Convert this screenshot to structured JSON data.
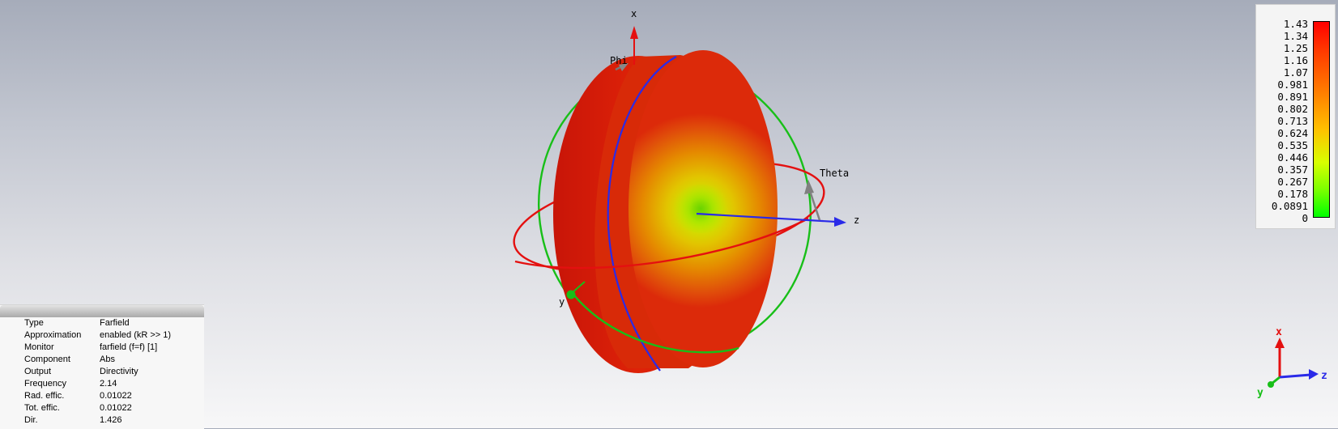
{
  "scene": {
    "axes": {
      "x_label": "x",
      "y_label": "y",
      "z_label": "z",
      "phi_label": "Phi",
      "theta_label": "Theta",
      "x_color": "#e41010",
      "y_color": "#12b012",
      "z_color": "#2323e6"
    },
    "pattern_colors": {
      "max": "#e01a0c",
      "mid": "#ff9a00",
      "low": "#c8ff00",
      "min": "#00ff00"
    }
  },
  "legend": {
    "ticks": [
      "1.43",
      "1.34",
      "1.25",
      "1.16",
      "1.07",
      "0.981",
      "0.891",
      "0.802",
      "0.713",
      "0.624",
      "0.535",
      "0.446",
      "0.357",
      "0.267",
      "0.178",
      "0.0891",
      "0"
    ]
  },
  "info": {
    "rows": [
      {
        "key": "Type",
        "value": "Farfield"
      },
      {
        "key": "Approximation",
        "value": "enabled (kR >> 1)"
      },
      {
        "key": "Monitor",
        "value": "farfield (f=f) [1]"
      },
      {
        "key": "Component",
        "value": "Abs"
      },
      {
        "key": "Output",
        "value": "Directivity"
      },
      {
        "key": "Frequency",
        "value": "2.14"
      },
      {
        "key": "Rad. effic.",
        "value": "0.01022"
      },
      {
        "key": "Tot. effic.",
        "value": "0.01022"
      },
      {
        "key": "Dir.",
        "value": "1.426"
      }
    ]
  },
  "triad": {
    "x_label": "x",
    "y_label": "y",
    "z_label": "z"
  }
}
